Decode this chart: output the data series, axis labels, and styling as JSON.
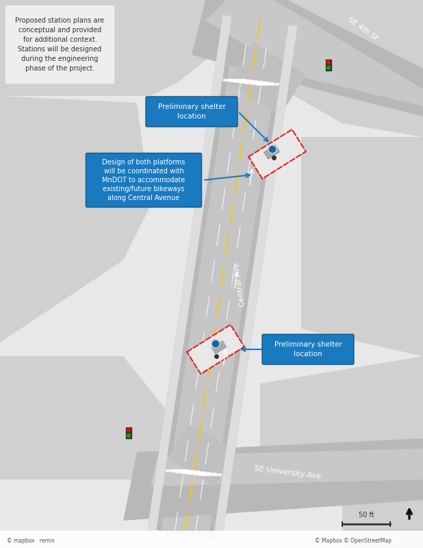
{
  "bg_color": "#e8e8e8",
  "road_color": "#b0b0b0",
  "road_dark": "#999999",
  "road_light": "#cccccc",
  "building_color": "#d8d8d8",
  "sidewalk_color": "#e0e0e0",
  "white": "#ffffff",
  "yellow_line": "#f5c518",
  "platform_fill": "#ffffff",
  "platform_border": "#e02020",
  "shelter_color": "#aaaaaa",
  "blue_box": "#1a7abf",
  "blue_box_dark": "#0d5a8a",
  "text_white": "#ffffff",
  "text_dark": "#333333",
  "text_gray": "#555555",
  "note_box_text": "Proposed station plans are\nconceptual and provided\nfor additional context.\nStations will be designed\nduring the engineering\nphase of the project.",
  "annotation1_text": "Preliminary shelter\nlocation",
  "annotation2_text": "Preliminary shelter\nlocation",
  "annotation3_text": "Design of both platforms\nwill be coordinated with\nMnDOT to accommodate\nexisting/future bikeways\nalong Central Avenue",
  "label_central": "Central Ave",
  "label_4th": "SE 4th St",
  "label_university": "SE University Ave",
  "scale_text": "50 ft",
  "copyright_text": "© Mapbox © OpenStreetMap",
  "mapbox_text": "© mapbox   remix"
}
